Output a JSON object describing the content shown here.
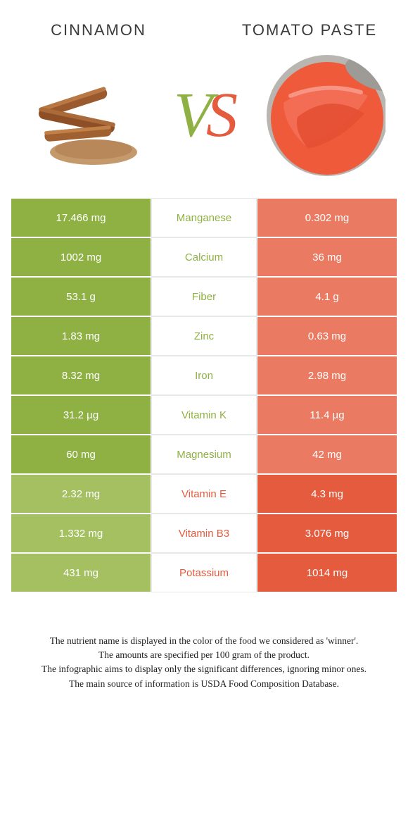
{
  "colors": {
    "left": "#8fb143",
    "right": "#e45b3e",
    "left_weak": "#a4c060",
    "right_weak": "#ea7a61",
    "vs_left": "#8fb143",
    "vs_right": "#e45b3e"
  },
  "left_food": "Cinnamon",
  "right_food": "Tomato Paste",
  "rows": [
    {
      "name": "Manganese",
      "left": "17.466 mg",
      "right": "0.302 mg",
      "winner": "left"
    },
    {
      "name": "Calcium",
      "left": "1002 mg",
      "right": "36 mg",
      "winner": "left"
    },
    {
      "name": "Fiber",
      "left": "53.1 g",
      "right": "4.1 g",
      "winner": "left"
    },
    {
      "name": "Zinc",
      "left": "1.83 mg",
      "right": "0.63 mg",
      "winner": "left"
    },
    {
      "name": "Iron",
      "left": "8.32 mg",
      "right": "2.98 mg",
      "winner": "left"
    },
    {
      "name": "Vitamin K",
      "left": "31.2 µg",
      "right": "11.4 µg",
      "winner": "left"
    },
    {
      "name": "Magnesium",
      "left": "60 mg",
      "right": "42 mg",
      "winner": "left"
    },
    {
      "name": "Vitamin E",
      "left": "2.32 mg",
      "right": "4.3 mg",
      "winner": "right"
    },
    {
      "name": "Vitamin B3",
      "left": "1.332 mg",
      "right": "3.076 mg",
      "winner": "right"
    },
    {
      "name": "Potassium",
      "left": "431 mg",
      "right": "1014 mg",
      "winner": "right"
    }
  ],
  "footer": [
    "The nutrient name is displayed in the color of the food we considered as 'winner'.",
    "The amounts are specified per 100 gram of the product.",
    "The infographic aims to display only the significant differences, ignoring minor ones.",
    "The main source of information is USDA Food Composition Database."
  ]
}
